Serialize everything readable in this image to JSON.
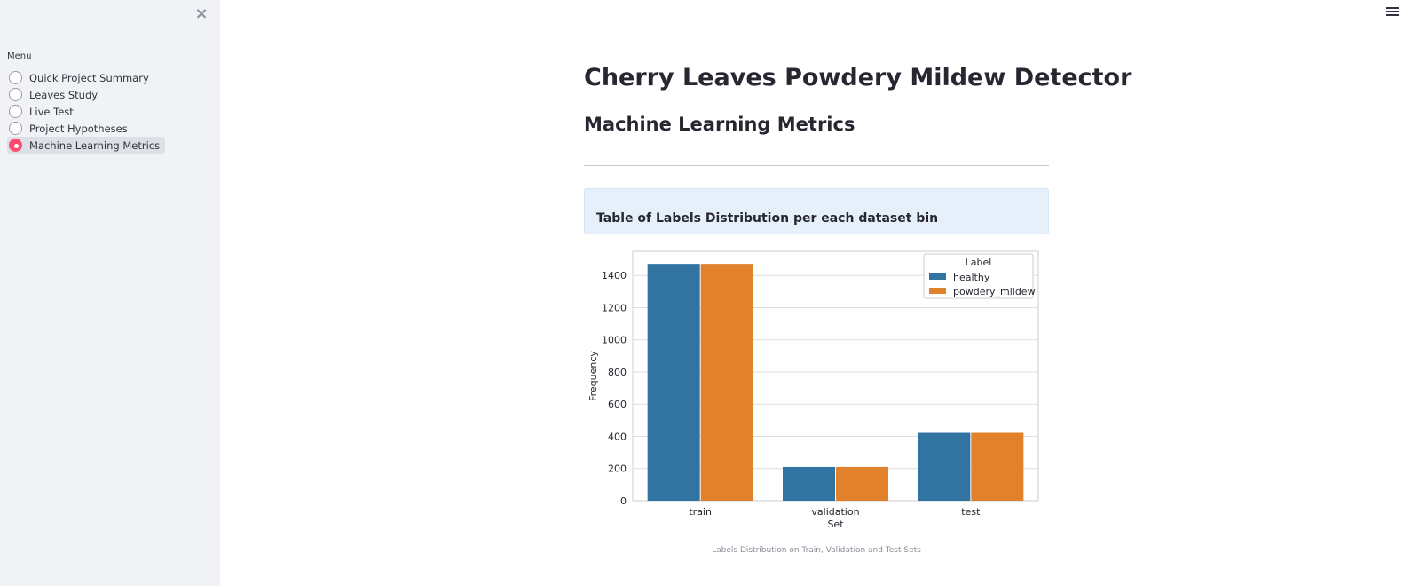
{
  "sidebar": {
    "menu_label": "Menu",
    "items": [
      {
        "label": "Quick Project Summary",
        "selected": false
      },
      {
        "label": "Leaves Study",
        "selected": false
      },
      {
        "label": "Live Test",
        "selected": false
      },
      {
        "label": "Project Hypotheses",
        "selected": false
      },
      {
        "label": "Machine Learning Metrics",
        "selected": true
      }
    ],
    "close_icon": "×"
  },
  "main": {
    "title": "Cherry Leaves Powdery Mildew Detector",
    "section_title": "Machine Learning Metrics",
    "info_text": "Table of Labels Distribution per each dataset bin",
    "caption": "Labels Distribution on Train, Validation and Test Sets"
  },
  "colors": {
    "healthy": "#3274a1",
    "powdery_mildew": "#e1812c",
    "accent": "#ff4b72"
  },
  "chart_data": {
    "type": "bar",
    "categories": [
      "train",
      "validation",
      "test"
    ],
    "series": [
      {
        "name": "healthy",
        "values": [
          1472,
          210,
          422
        ]
      },
      {
        "name": "powdery_mildew",
        "values": [
          1472,
          210,
          422
        ]
      }
    ],
    "xlabel": "Set",
    "ylabel": "Frequency",
    "ylim": [
      0,
      1550
    ],
    "yticks": [
      0,
      200,
      400,
      600,
      800,
      1000,
      1200,
      1400
    ],
    "legend_title": "Label",
    "legend_position": "top-right",
    "grid": true
  }
}
